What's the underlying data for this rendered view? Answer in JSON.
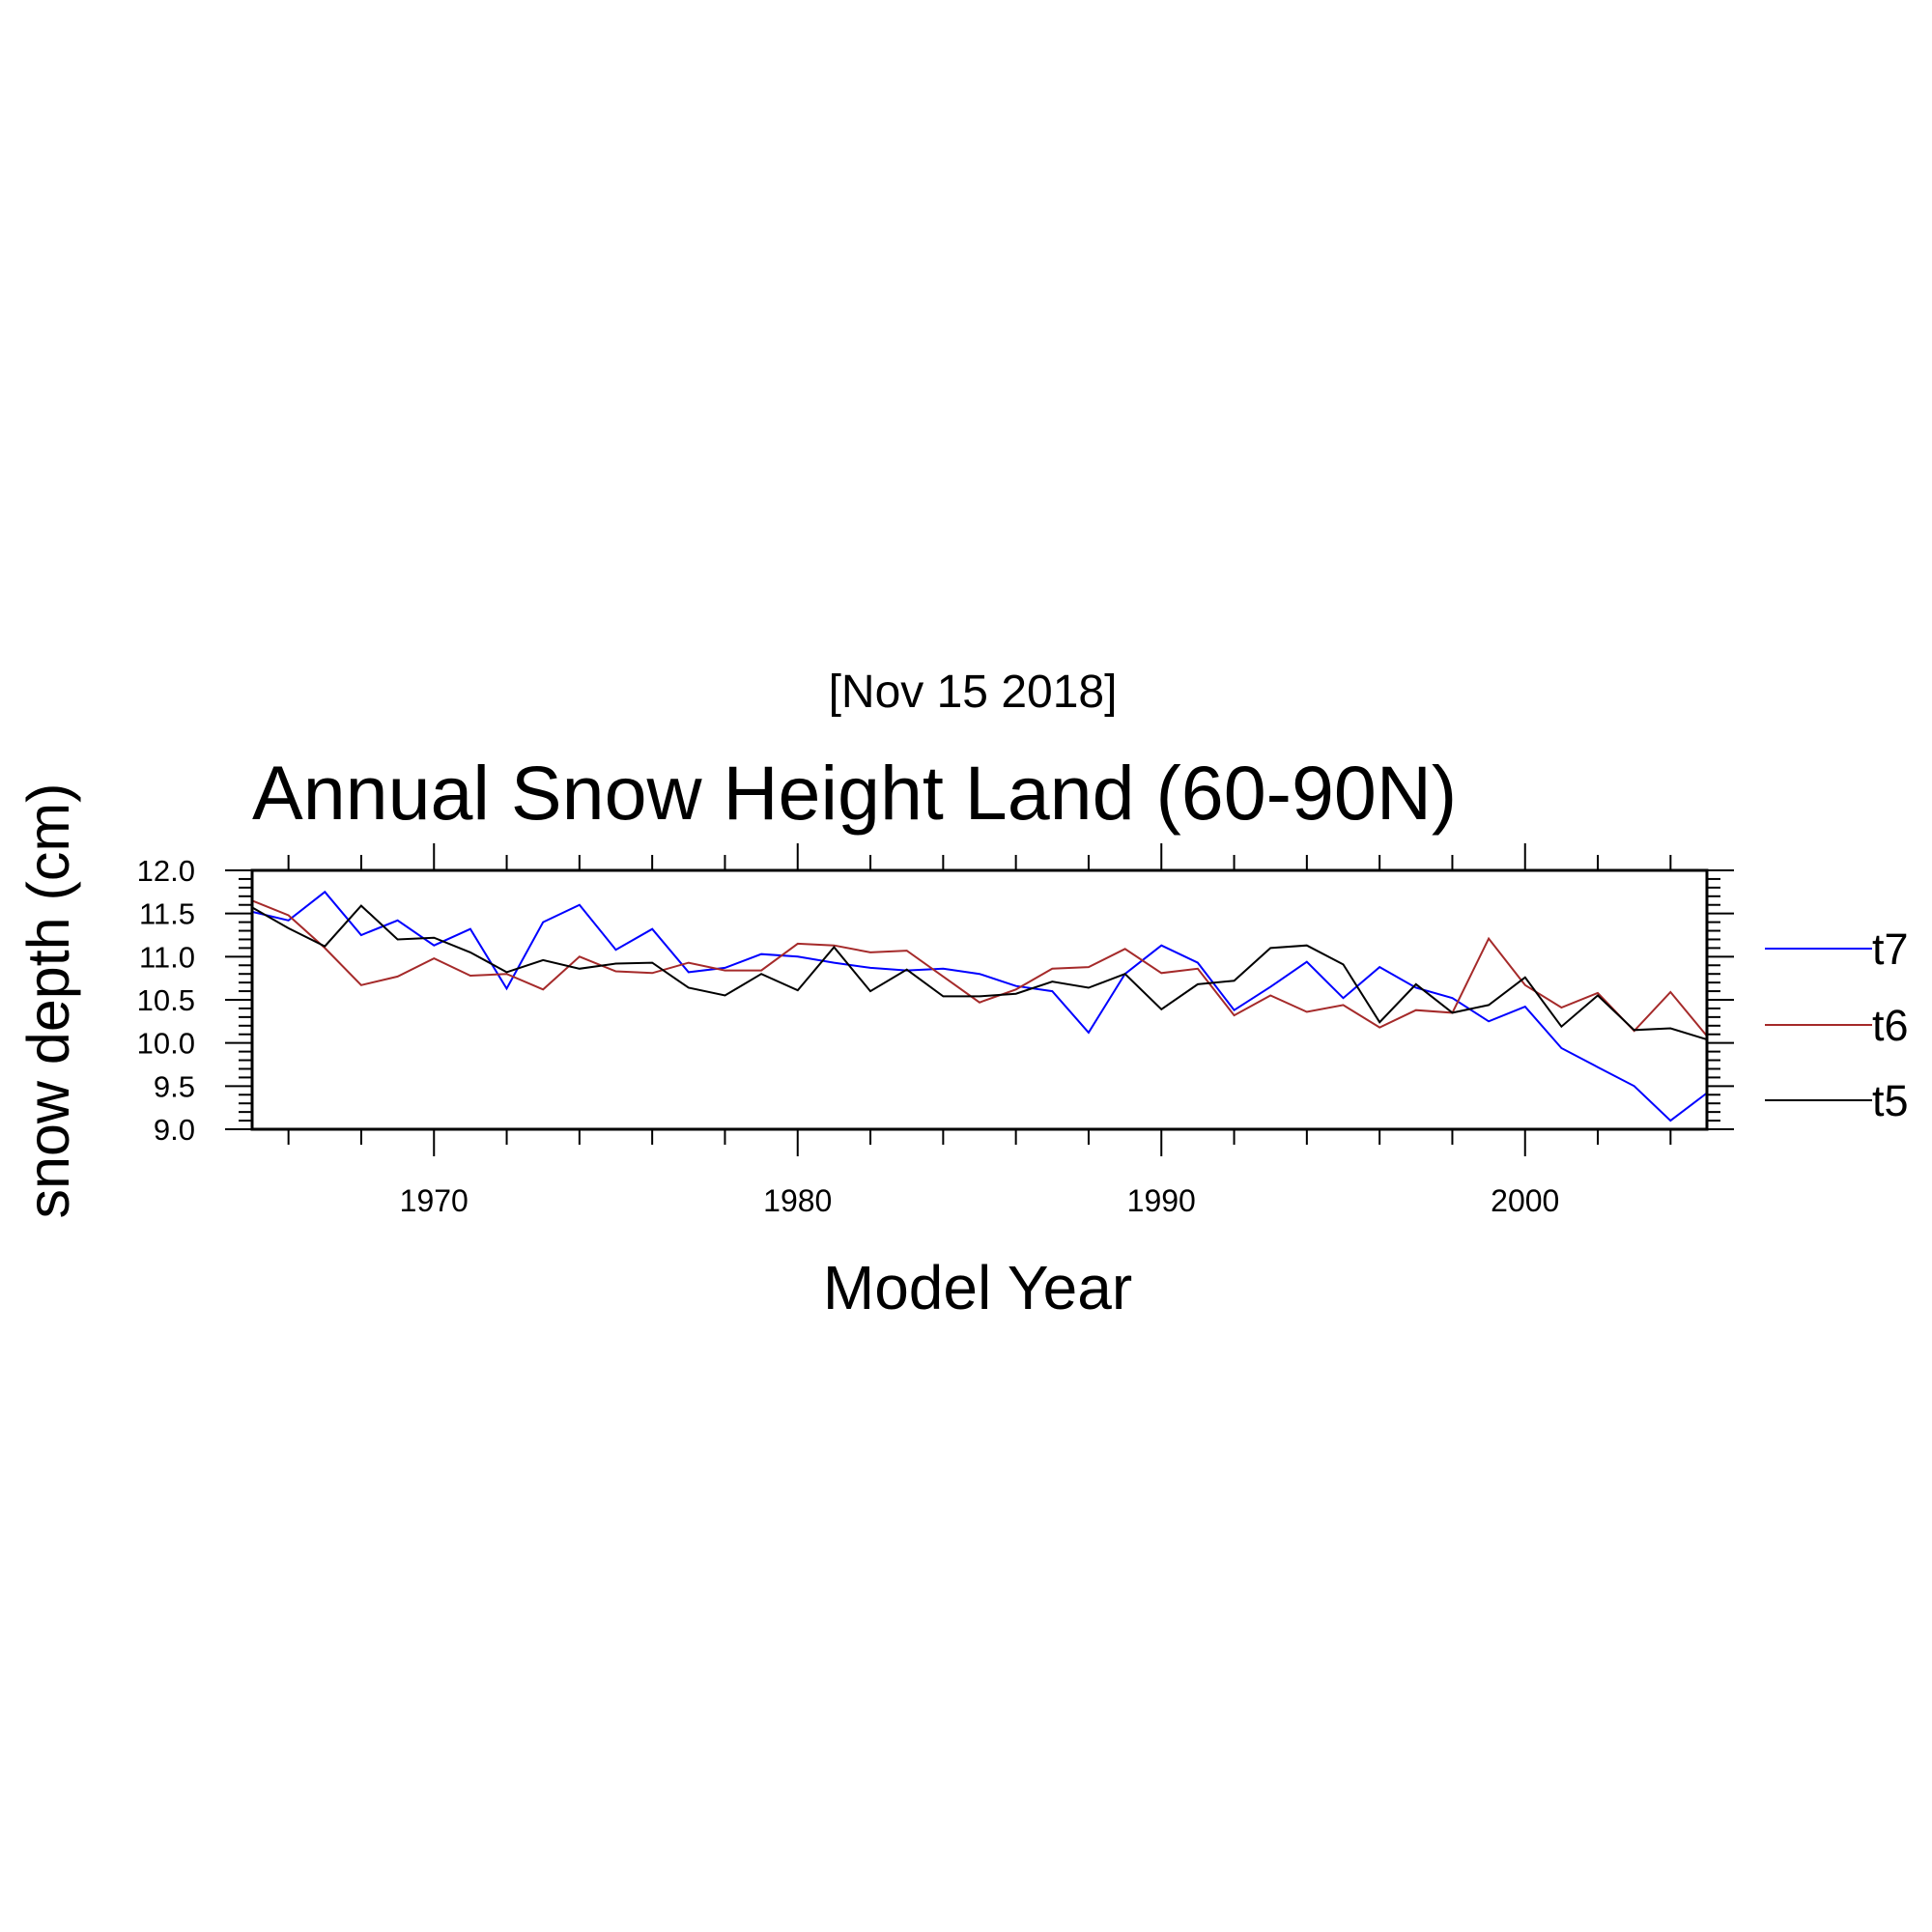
{
  "chart_data": {
    "type": "line",
    "subtitle": "[Nov 15 2018]",
    "title": "Annual Snow Height Land (60-90N)",
    "xlabel": "Model Year",
    "ylabel": "snow depth (cm)",
    "xlim": [
      1965,
      2005
    ],
    "ylim": [
      9.0,
      12.0
    ],
    "xticks": [
      1970,
      1980,
      1990,
      2000
    ],
    "xtick_labels": [
      "1970",
      "1980",
      "1990",
      "2000"
    ],
    "yticks": [
      9.0,
      9.5,
      10.0,
      10.5,
      11.0,
      11.5,
      12.0
    ],
    "ytick_labels": [
      "9.0",
      "9.5",
      "10.0",
      "10.5",
      "11.0",
      "11.5",
      "12.0"
    ],
    "grid": false,
    "legend_position": "right",
    "x": [
      1965,
      1966,
      1967,
      1968,
      1969,
      1970,
      1971,
      1972,
      1973,
      1974,
      1975,
      1976,
      1977,
      1978,
      1979,
      1980,
      1981,
      1982,
      1983,
      1984,
      1985,
      1986,
      1987,
      1988,
      1989,
      1990,
      1991,
      1992,
      1993,
      1994,
      1995,
      1996,
      1997,
      1998,
      1999,
      2000,
      2001,
      2002,
      2003,
      2004,
      2005
    ],
    "series": [
      {
        "name": "t7",
        "color": "#0000ff",
        "values": [
          11.52,
          11.42,
          11.75,
          11.25,
          11.42,
          11.13,
          11.32,
          10.63,
          11.4,
          11.6,
          11.08,
          11.32,
          10.82,
          10.87,
          11.03,
          11.0,
          10.93,
          10.87,
          10.84,
          10.86,
          10.8,
          10.66,
          10.6,
          10.12,
          10.8,
          11.13,
          10.93,
          10.38,
          10.65,
          10.94,
          10.52,
          10.88,
          10.64,
          10.52,
          10.25,
          10.42,
          9.94,
          9.72,
          9.5,
          9.1,
          9.42
        ]
      },
      {
        "name": "t6",
        "color": "#a52a2a",
        "values": [
          11.65,
          11.48,
          11.1,
          10.67,
          10.77,
          10.98,
          10.78,
          10.8,
          10.62,
          11.0,
          10.83,
          10.81,
          10.93,
          10.84,
          10.84,
          11.15,
          11.13,
          11.05,
          11.07,
          10.77,
          10.47,
          10.62,
          10.86,
          10.88,
          11.09,
          10.81,
          10.86,
          10.32,
          10.55,
          10.36,
          10.44,
          10.18,
          10.38,
          10.35,
          11.21,
          10.67,
          10.41,
          10.58,
          10.14,
          10.59,
          10.08
        ]
      },
      {
        "name": "t5",
        "color": "#000000",
        "values": [
          11.57,
          11.33,
          11.12,
          11.59,
          11.2,
          11.22,
          11.05,
          10.82,
          10.96,
          10.86,
          10.92,
          10.93,
          10.64,
          10.55,
          10.8,
          10.61,
          11.11,
          10.6,
          10.85,
          10.54,
          10.54,
          10.57,
          10.71,
          10.64,
          10.8,
          10.39,
          10.68,
          10.72,
          11.1,
          11.13,
          10.91,
          10.24,
          10.68,
          10.35,
          10.44,
          10.76,
          10.19,
          10.55,
          10.15,
          10.17,
          10.04
        ]
      }
    ]
  }
}
